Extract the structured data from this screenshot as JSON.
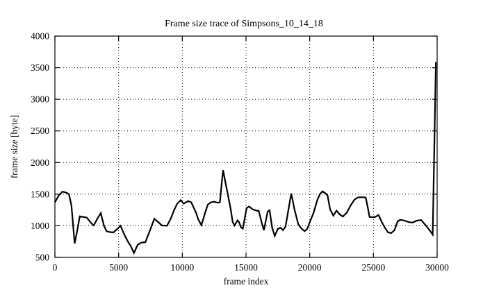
{
  "figure": {
    "title": "Frame size trace of Simpsons_10_14_18",
    "xlabel": "frame index",
    "ylabel": "frame size [byte]"
  },
  "chart_data": {
    "type": "line",
    "title": "Frame size trace of Simpsons_10_14_18",
    "xlabel": "frame index",
    "ylabel": "frame size [byte]",
    "xlim": [
      0,
      30000
    ],
    "ylim": [
      500,
      4000
    ],
    "xticks": [
      0,
      5000,
      10000,
      15000,
      20000,
      25000,
      30000
    ],
    "yticks": [
      500,
      1000,
      1500,
      2000,
      2500,
      3000,
      3500,
      4000
    ],
    "grid": "dotted interior gridlines at every tick, mirrored tick marks on all four borders",
    "legend": "none",
    "line_color": "#000000",
    "background_color": "#ffffff",
    "series": [
      {
        "name": "frame size",
        "points": [
          [
            0,
            1370
          ],
          [
            300,
            1480
          ],
          [
            600,
            1540
          ],
          [
            900,
            1525
          ],
          [
            1100,
            1500
          ],
          [
            1300,
            1320
          ],
          [
            1550,
            720
          ],
          [
            1750,
            920
          ],
          [
            1950,
            1150
          ],
          [
            2200,
            1140
          ],
          [
            2500,
            1130
          ],
          [
            2850,
            1040
          ],
          [
            3050,
            1005
          ],
          [
            3300,
            1100
          ],
          [
            3600,
            1200
          ],
          [
            3850,
            1000
          ],
          [
            4050,
            915
          ],
          [
            4300,
            900
          ],
          [
            4600,
            895
          ],
          [
            4900,
            950
          ],
          [
            5150,
            1000
          ],
          [
            5450,
            860
          ],
          [
            5700,
            760
          ],
          [
            5950,
            680
          ],
          [
            6200,
            570
          ],
          [
            6500,
            700
          ],
          [
            6800,
            735
          ],
          [
            7100,
            740
          ],
          [
            7400,
            895
          ],
          [
            7800,
            1110
          ],
          [
            8100,
            1060
          ],
          [
            8400,
            1005
          ],
          [
            8800,
            1000
          ],
          [
            9100,
            1115
          ],
          [
            9350,
            1245
          ],
          [
            9600,
            1350
          ],
          [
            9870,
            1405
          ],
          [
            10100,
            1350
          ],
          [
            10470,
            1390
          ],
          [
            10700,
            1370
          ],
          [
            11080,
            1205
          ],
          [
            11250,
            1100
          ],
          [
            11500,
            1010
          ],
          [
            11800,
            1210
          ],
          [
            12000,
            1335
          ],
          [
            12250,
            1370
          ],
          [
            12500,
            1380
          ],
          [
            12750,
            1365
          ],
          [
            12950,
            1370
          ],
          [
            13050,
            1590
          ],
          [
            13200,
            1880
          ],
          [
            13400,
            1665
          ],
          [
            13550,
            1520
          ],
          [
            13800,
            1260
          ],
          [
            13950,
            1060
          ],
          [
            14100,
            1005
          ],
          [
            14330,
            1085
          ],
          [
            14450,
            1060
          ],
          [
            14600,
            975
          ],
          [
            14750,
            955
          ],
          [
            15050,
            1280
          ],
          [
            15250,
            1305
          ],
          [
            15500,
            1260
          ],
          [
            15800,
            1240
          ],
          [
            16000,
            1235
          ],
          [
            16250,
            1035
          ],
          [
            16400,
            930
          ],
          [
            16700,
            1225
          ],
          [
            16850,
            1245
          ],
          [
            17050,
            970
          ],
          [
            17250,
            840
          ],
          [
            17500,
            950
          ],
          [
            17700,
            970
          ],
          [
            17900,
            930
          ],
          [
            18100,
            985
          ],
          [
            18400,
            1335
          ],
          [
            18550,
            1510
          ],
          [
            18800,
            1260
          ],
          [
            19100,
            1025
          ],
          [
            19350,
            955
          ],
          [
            19600,
            915
          ],
          [
            19800,
            950
          ],
          [
            20050,
            1080
          ],
          [
            20300,
            1205
          ],
          [
            20600,
            1410
          ],
          [
            20800,
            1500
          ],
          [
            21000,
            1545
          ],
          [
            21250,
            1510
          ],
          [
            21400,
            1480
          ],
          [
            21600,
            1260
          ],
          [
            21850,
            1160
          ],
          [
            22100,
            1240
          ],
          [
            22350,
            1180
          ],
          [
            22600,
            1145
          ],
          [
            22900,
            1205
          ],
          [
            23250,
            1335
          ],
          [
            23500,
            1410
          ],
          [
            23750,
            1445
          ],
          [
            23900,
            1450
          ],
          [
            24250,
            1450
          ],
          [
            24400,
            1445
          ],
          [
            24550,
            1295
          ],
          [
            24700,
            1140
          ],
          [
            24900,
            1135
          ],
          [
            25150,
            1140
          ],
          [
            25400,
            1170
          ],
          [
            25650,
            1060
          ],
          [
            25900,
            970
          ],
          [
            26150,
            895
          ],
          [
            26400,
            885
          ],
          [
            26650,
            930
          ],
          [
            26900,
            1070
          ],
          [
            27100,
            1095
          ],
          [
            27450,
            1080
          ],
          [
            27750,
            1060
          ],
          [
            28050,
            1050
          ],
          [
            28400,
            1080
          ],
          [
            28750,
            1090
          ],
          [
            29250,
            970
          ],
          [
            29500,
            905
          ],
          [
            29650,
            860
          ],
          [
            29900,
            3590
          ]
        ]
      }
    ]
  }
}
